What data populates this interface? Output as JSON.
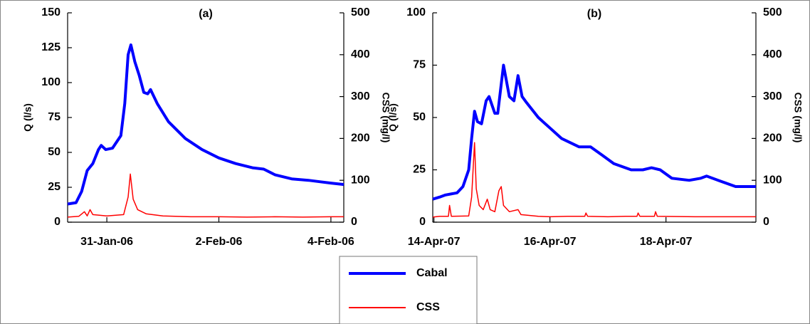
{
  "chart_data": [
    {
      "type": "line",
      "title": "(a)",
      "y_label": "Q (l/s)",
      "y2_label": "CSS (mg/l)",
      "xlim": [
        38747.3,
        38752.23
      ],
      "xticks": [
        {
          "value": 38748,
          "label": "31-Jan-06"
        },
        {
          "value": 38750,
          "label": "2-Feb-06"
        },
        {
          "value": 38752,
          "label": "4-Feb-06"
        }
      ],
      "ylim": [
        0,
        150
      ],
      "yticks": [
        0,
        25,
        50,
        75,
        100,
        125,
        150
      ],
      "y2lim": [
        0,
        500
      ],
      "y2ticks": [
        0,
        100,
        200,
        300,
        400,
        500
      ],
      "series": [
        {
          "name": "Cabal",
          "color": "#0000ff",
          "x": [
            38747.3,
            38747.45,
            38747.55,
            38747.65,
            38747.75,
            38747.85,
            38747.9,
            38747.98,
            38748.1,
            38748.25,
            38748.32,
            38748.38,
            38748.43,
            38748.5,
            38748.58,
            38748.66,
            38748.73,
            38748.78,
            38748.9,
            38749.1,
            38749.4,
            38749.7,
            38750,
            38750.3,
            38750.6,
            38750.8,
            38751,
            38751.3,
            38751.6,
            38751.8,
            38752,
            38752.23
          ],
          "values": [
            13,
            14,
            22,
            37,
            42,
            52,
            55,
            52,
            53,
            62,
            85,
            120,
            127,
            115,
            105,
            93,
            92,
            95,
            85,
            72,
            60,
            52,
            46,
            42,
            39,
            38,
            34,
            31,
            30,
            29,
            28,
            27
          ]
        },
        {
          "name": "CSS",
          "color": "#ff0000",
          "axis": "y2",
          "x": [
            38747.3,
            38747.5,
            38747.6,
            38747.65,
            38747.7,
            38747.75,
            38748,
            38748.3,
            38748.38,
            38748.42,
            38748.47,
            38748.55,
            38748.7,
            38749,
            38749.5,
            38750,
            38750.5,
            38751,
            38751.5,
            38752,
            38752.23
          ],
          "values": [
            12,
            14,
            25,
            15,
            30,
            18,
            15,
            18,
            60,
            115,
            55,
            30,
            20,
            15,
            13,
            13,
            12,
            13,
            12,
            13,
            13
          ]
        }
      ]
    },
    {
      "type": "line",
      "title": "(b)",
      "y_label": "Q (l/s)",
      "y2_label": "CSS (mg/l)",
      "xlim": [
        39185.98,
        39191.55
      ],
      "xticks": [
        {
          "value": 39186,
          "label": "14-Apr-07"
        },
        {
          "value": 39188,
          "label": "16-Apr-07"
        },
        {
          "value": 39190,
          "label": "18-Apr-07"
        }
      ],
      "ylim": [
        0,
        100
      ],
      "yticks": [
        0,
        25,
        50,
        75,
        100
      ],
      "y2lim": [
        0,
        500
      ],
      "y2ticks": [
        0,
        100,
        200,
        300,
        400,
        500
      ],
      "series": [
        {
          "color": "#0000ff",
          "x": [
            39185.98,
            39186.1,
            39186.2,
            39186.4,
            39186.5,
            39186.6,
            39186.65,
            39186.7,
            39186.75,
            39186.82,
            39186.9,
            39186.95,
            39187.05,
            39187.1,
            39187.2,
            39187.3,
            39187.38,
            39187.45,
            39187.52,
            39187.6,
            39187.8,
            39188,
            39188.2,
            39188.5,
            39188.7,
            39188.9,
            39189.1,
            39189.4,
            39189.6,
            39189.75,
            39189.9,
            39190.1,
            39190.4,
            39190.6,
            39190.7,
            39190.9,
            39191.2,
            39191.55
          ],
          "values": [
            11,
            12,
            13,
            14,
            17,
            25,
            40,
            53,
            48,
            47,
            58,
            60,
            52,
            52,
            75,
            60,
            58,
            70,
            60,
            57,
            50,
            45,
            40,
            36,
            36,
            32,
            28,
            25,
            25,
            26,
            25,
            21,
            20,
            21,
            22,
            20,
            17,
            17
          ]
        },
        {
          "color": "#ff0000",
          "axis": "y2",
          "x": [
            39185.98,
            39186.1,
            39186.25,
            39186.27,
            39186.3,
            39186.6,
            39186.65,
            39186.7,
            39186.73,
            39186.78,
            39186.85,
            39186.92,
            39186.97,
            39187.05,
            39187.12,
            39187.16,
            39187.2,
            39187.3,
            39187.45,
            39187.5,
            39187.8,
            39188,
            39188.3,
            39188.6,
            39188.62,
            39188.65,
            39189,
            39189.3,
            39189.5,
            39189.52,
            39189.55,
            39189.8,
            39189.82,
            39189.85,
            39190.5,
            39191,
            39191.55
          ],
          "values": [
            12,
            14,
            14,
            40,
            14,
            15,
            60,
            190,
            80,
            40,
            30,
            55,
            30,
            25,
            75,
            85,
            40,
            25,
            30,
            18,
            14,
            13,
            14,
            14,
            22,
            14,
            13,
            14,
            14,
            22,
            14,
            14,
            25,
            14,
            13,
            13,
            13
          ]
        }
      ]
    }
  ]
}
